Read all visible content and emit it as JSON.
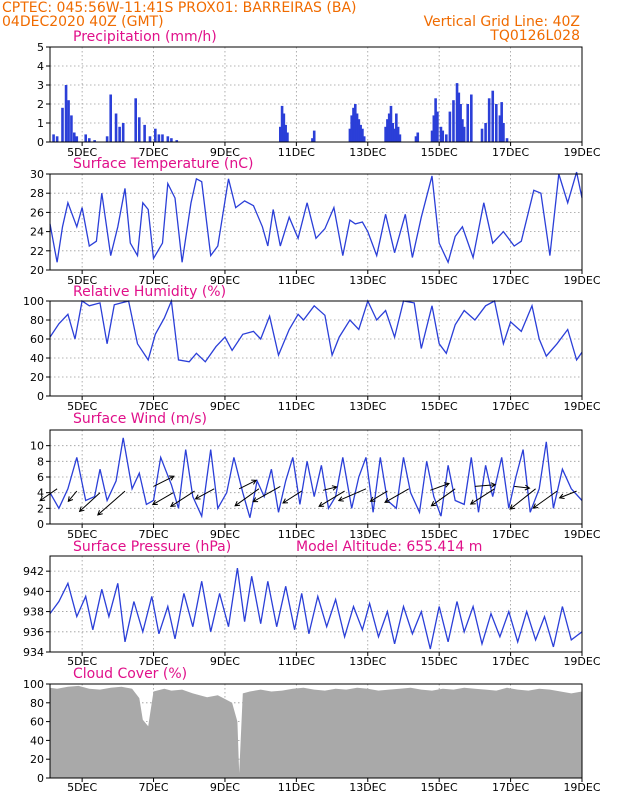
{
  "header": {
    "left_line1": "CPTEC:   045:56W-11:41S   PROX01: BARREIRAS (BA)",
    "left_line2": "04DEC2020 40Z (GMT)",
    "right_line2": "Vertical Grid Line: 40Z",
    "right_line3": "TQ0126L028"
  },
  "colors": {
    "header": "#f06b00",
    "title": "#e0108a",
    "series": "#2b3fd8",
    "cloud": "#a9a9a9",
    "grid": "#9a9a9a"
  },
  "x_axis": {
    "tick_labels": [
      "5DEC",
      "7DEC",
      "9DEC",
      "11DEC",
      "13DEC",
      "15DEC",
      "17DEC",
      "19DEC"
    ],
    "tick_days": [
      5,
      7,
      9,
      11,
      13,
      15,
      17,
      19
    ],
    "start_day": 4.1,
    "end_day": 19
  },
  "chart_data": [
    {
      "type": "bar",
      "title": "Precipitation (mm/h)",
      "ylim": [
        0,
        5
      ],
      "yticks": [
        0,
        1,
        2,
        3,
        4,
        5
      ],
      "grid": true,
      "x": [
        4.2,
        4.3,
        4.45,
        4.55,
        4.62,
        4.7,
        4.78,
        4.85,
        5.1,
        5.2,
        5.35,
        5.7,
        5.8,
        5.95,
        6.05,
        6.15,
        6.5,
        6.6,
        6.75,
        6.9,
        7.05,
        7.15,
        7.25,
        7.4,
        7.5,
        7.65,
        10.55,
        10.6,
        10.65,
        10.7,
        10.75,
        11.45,
        11.5,
        12.5,
        12.55,
        12.6,
        12.65,
        12.7,
        12.75,
        12.8,
        12.85,
        12.9,
        13.5,
        13.55,
        13.6,
        13.65,
        13.7,
        13.75,
        13.8,
        13.85,
        13.9,
        14.35,
        14.4,
        14.8,
        14.85,
        14.9,
        14.95,
        15.05,
        15.1,
        15.2,
        15.3,
        15.4,
        15.5,
        15.55,
        15.6,
        15.65,
        15.7,
        15.8,
        15.9,
        16.2,
        16.3,
        16.4,
        16.5,
        16.6,
        16.7,
        16.75,
        16.8,
        16.9
      ],
      "values": [
        0.4,
        0.3,
        1.8,
        3.0,
        2.2,
        1.4,
        0.5,
        0.3,
        0.4,
        0.2,
        0.1,
        0.3,
        2.5,
        1.5,
        0.8,
        1.0,
        2.3,
        1.3,
        0.9,
        0.3,
        0.7,
        0.4,
        0.4,
        0.3,
        0.2,
        0.1,
        0.8,
        1.9,
        1.5,
        0.9,
        0.5,
        0.2,
        0.6,
        0.7,
        1.4,
        1.8,
        2.0,
        1.5,
        1.2,
        0.9,
        0.7,
        0.3,
        0.8,
        1.2,
        1.5,
        1.9,
        1.0,
        0.7,
        1.5,
        0.8,
        0.4,
        0.3,
        0.5,
        0.6,
        1.4,
        2.3,
        1.6,
        0.8,
        0.6,
        0.4,
        1.6,
        2.2,
        3.1,
        2.6,
        2.0,
        1.2,
        0.8,
        2.0,
        2.5,
        0.7,
        1.0,
        2.3,
        2.7,
        2.0,
        1.4,
        2.1,
        1.0,
        0.2
      ]
    },
    {
      "type": "line",
      "title": "Surface Temperature (nC)",
      "ylim": [
        20,
        30
      ],
      "yticks": [
        20,
        22,
        24,
        26,
        28,
        30
      ],
      "grid": true,
      "x": [
        4.1,
        4.3,
        4.45,
        4.6,
        4.85,
        5.0,
        5.2,
        5.4,
        5.55,
        5.8,
        6.0,
        6.2,
        6.35,
        6.55,
        6.7,
        6.85,
        7.0,
        7.25,
        7.4,
        7.6,
        7.8,
        8.05,
        8.2,
        8.35,
        8.6,
        8.8,
        9.1,
        9.3,
        9.55,
        9.8,
        10.05,
        10.2,
        10.35,
        10.55,
        10.8,
        11.05,
        11.3,
        11.55,
        11.8,
        12.05,
        12.3,
        12.5,
        12.65,
        12.85,
        13.0,
        13.25,
        13.5,
        13.75,
        14.05,
        14.25,
        14.5,
        14.8,
        15.0,
        15.25,
        15.45,
        15.65,
        15.95,
        16.25,
        16.5,
        16.8,
        17.1,
        17.3,
        17.65,
        17.85,
        18.1,
        18.35,
        18.6,
        18.85,
        19.0
      ],
      "values": [
        24.8,
        20.8,
        24.5,
        27.0,
        24.5,
        26.5,
        22.5,
        23.0,
        28.0,
        21.5,
        24.5,
        28.5,
        22.8,
        21.5,
        27.0,
        26.3,
        21.2,
        22.8,
        29.0,
        27.5,
        20.8,
        27.0,
        29.5,
        29.2,
        21.5,
        22.5,
        29.5,
        26.5,
        27.2,
        26.7,
        24.5,
        22.5,
        26.3,
        22.5,
        25.5,
        23.3,
        27.0,
        23.3,
        24.3,
        26.5,
        21.5,
        25.2,
        24.8,
        25.0,
        24.0,
        21.5,
        25.8,
        21.8,
        25.8,
        21.3,
        25.5,
        29.8,
        22.8,
        20.8,
        23.5,
        24.5,
        21.3,
        27.0,
        22.8,
        24.0,
        22.5,
        23.0,
        28.3,
        28.0,
        21.5,
        30.0,
        27.0,
        30.2,
        27.5
      ]
    },
    {
      "type": "line",
      "title": "Relative Humidity (%)",
      "ylim": [
        0,
        100
      ],
      "yticks": [
        0,
        20,
        40,
        60,
        80,
        100
      ],
      "grid": true,
      "x": [
        4.1,
        4.35,
        4.6,
        4.8,
        5.0,
        5.2,
        5.5,
        5.7,
        5.9,
        6.1,
        6.3,
        6.55,
        6.85,
        7.05,
        7.3,
        7.5,
        7.7,
        8.0,
        8.2,
        8.45,
        8.75,
        9.0,
        9.2,
        9.5,
        9.8,
        10.0,
        10.25,
        10.5,
        10.8,
        11.05,
        11.2,
        11.5,
        11.8,
        12.0,
        12.2,
        12.5,
        12.75,
        13.0,
        13.25,
        13.5,
        13.75,
        14.0,
        14.3,
        14.5,
        14.8,
        15.0,
        15.2,
        15.45,
        15.7,
        16.0,
        16.3,
        16.55,
        16.8,
        17.0,
        17.3,
        17.6,
        17.8,
        18.0,
        18.3,
        18.6,
        18.85,
        19.0
      ],
      "values": [
        62,
        76,
        86,
        60,
        100,
        95,
        98,
        55,
        96,
        98,
        100,
        55,
        38,
        65,
        82,
        100,
        38,
        36,
        45,
        36,
        52,
        62,
        48,
        65,
        68,
        60,
        84,
        43,
        70,
        86,
        80,
        95,
        85,
        43,
        62,
        80,
        70,
        100,
        80,
        90,
        62,
        100,
        98,
        50,
        95,
        55,
        45,
        75,
        90,
        80,
        95,
        100,
        55,
        78,
        68,
        95,
        60,
        42,
        55,
        70,
        38,
        46
      ]
    },
    {
      "type": "line",
      "title": "Surface Wind (m/s)",
      "ylim": [
        0,
        12
      ],
      "yticks": [
        0,
        2,
        4,
        6,
        8,
        10
      ],
      "grid": true,
      "x": [
        4.1,
        4.35,
        4.6,
        4.85,
        5.1,
        5.35,
        5.5,
        5.7,
        5.95,
        6.15,
        6.4,
        6.6,
        6.8,
        7.0,
        7.2,
        7.5,
        7.7,
        7.9,
        8.1,
        8.35,
        8.6,
        8.8,
        9.05,
        9.25,
        9.5,
        9.7,
        9.9,
        10.1,
        10.3,
        10.5,
        10.7,
        10.9,
        11.1,
        11.3,
        11.5,
        11.7,
        11.9,
        12.1,
        12.3,
        12.55,
        12.75,
        12.95,
        13.15,
        13.35,
        13.55,
        13.8,
        14.0,
        14.2,
        14.45,
        14.65,
        14.85,
        15.05,
        15.25,
        15.45,
        15.7,
        15.9,
        16.1,
        16.3,
        16.5,
        16.75,
        16.95,
        17.15,
        17.35,
        17.55,
        17.8,
        18.0,
        18.2,
        18.45,
        18.7,
        19.0
      ],
      "values": [
        4.0,
        2.0,
        4.5,
        8.5,
        3.0,
        3.5,
        7.0,
        3.0,
        5.5,
        11.0,
        4.5,
        6.5,
        2.5,
        3.0,
        8.5,
        5.0,
        2.0,
        9.5,
        3.5,
        1.0,
        9.5,
        2.0,
        4.0,
        8.5,
        4.0,
        0.8,
        5.5,
        3.5,
        7.0,
        1.5,
        5.5,
        8.5,
        2.5,
        8.0,
        3.5,
        7.5,
        2.0,
        3.5,
        8.5,
        2.0,
        6.0,
        8.5,
        1.5,
        8.5,
        3.0,
        2.0,
        8.5,
        4.0,
        1.5,
        8.0,
        3.5,
        1.0,
        7.5,
        3.0,
        2.5,
        8.5,
        1.5,
        7.5,
        3.5,
        8.5,
        2.0,
        6.0,
        9.5,
        1.5,
        4.5,
        10.5,
        2.0,
        7.0,
        4.5,
        3.0
      ],
      "wind_vectors": {
        "x": [
          4.3,
          4.85,
          5.5,
          6.2,
          7.0,
          7.55,
          8.15,
          8.7,
          9.4,
          9.95,
          10.55,
          11.15,
          11.75,
          12.35,
          12.95,
          13.55,
          14.15,
          14.75,
          15.45,
          16.0,
          16.55,
          17.1,
          17.7,
          18.3,
          18.85
        ],
        "y": [
          4.5,
          4.2,
          4.0,
          4.2,
          4.8,
          4.0,
          4.2,
          4.5,
          4.5,
          4.5,
          4.8,
          4.2,
          4.3,
          4.2,
          4.5,
          4.2,
          4.5,
          4.3,
          4.5,
          4.8,
          4.5,
          4.8,
          4.5,
          4.2,
          4.2
        ],
        "u": [
          -0.5,
          -0.25,
          -0.6,
          -0.8,
          0.6,
          -0.6,
          -0.7,
          -0.55,
          0.5,
          -0.7,
          -0.8,
          -0.55,
          0.4,
          -0.75,
          -0.8,
          -0.5,
          -0.7,
          0.55,
          -0.7,
          0.6,
          -0.7,
          0.45,
          -0.75,
          -0.7,
          -0.5
        ],
        "v": [
          -0.35,
          -0.3,
          -0.55,
          -0.7,
          0.3,
          -0.35,
          -0.45,
          -0.3,
          0.25,
          -0.5,
          -0.45,
          -0.35,
          0.1,
          -0.45,
          -0.35,
          -0.3,
          -0.4,
          0.2,
          -0.5,
          0.05,
          -0.45,
          -0.05,
          -0.6,
          -0.5,
          -0.2
        ]
      }
    },
    {
      "type": "line",
      "title": "Surface Pressure (hPa)",
      "annotation": "Model Altitude: 655.414 m",
      "ylim": [
        934,
        943.5
      ],
      "yticks": [
        934,
        936,
        938,
        940,
        942
      ],
      "grid": true,
      "x": [
        4.1,
        4.35,
        4.6,
        4.85,
        5.1,
        5.3,
        5.55,
        5.75,
        6.0,
        6.2,
        6.45,
        6.7,
        6.95,
        7.15,
        7.4,
        7.6,
        7.85,
        8.1,
        8.35,
        8.6,
        8.85,
        9.1,
        9.35,
        9.55,
        9.75,
        10.0,
        10.2,
        10.45,
        10.7,
        10.95,
        11.15,
        11.35,
        11.6,
        11.85,
        12.1,
        12.35,
        12.6,
        12.85,
        13.05,
        13.3,
        13.55,
        13.75,
        14.0,
        14.25,
        14.5,
        14.75,
        15.0,
        15.25,
        15.5,
        15.7,
        15.95,
        16.2,
        16.45,
        16.7,
        16.95,
        17.2,
        17.45,
        17.7,
        17.95,
        18.2,
        18.45,
        18.7,
        19.0
      ],
      "values": [
        937.8,
        939.0,
        940.8,
        937.5,
        939.5,
        936.2,
        940.2,
        937.5,
        940.8,
        935.0,
        939.0,
        936.0,
        939.5,
        935.8,
        938.5,
        935.3,
        939.8,
        936.5,
        941.0,
        936.0,
        939.8,
        936.5,
        942.3,
        937.0,
        941.5,
        936.8,
        941.0,
        936.5,
        940.5,
        936.2,
        939.8,
        935.8,
        939.5,
        936.5,
        939.2,
        935.5,
        938.5,
        936.2,
        938.8,
        935.5,
        938.0,
        934.8,
        938.5,
        935.8,
        938.0,
        934.3,
        938.5,
        935.0,
        939.0,
        936.0,
        938.5,
        934.8,
        937.8,
        935.5,
        938.0,
        935.0,
        938.0,
        935.2,
        937.5,
        934.5,
        938.5,
        935.2,
        936.0
      ]
    },
    {
      "type": "area",
      "title": "Cloud Cover (%)",
      "ylim": [
        0,
        100
      ],
      "yticks": [
        0,
        20,
        40,
        60,
        80,
        100
      ],
      "grid": true,
      "x": [
        4.1,
        4.3,
        4.6,
        4.9,
        5.2,
        5.5,
        5.8,
        6.1,
        6.4,
        6.6,
        6.7,
        6.85,
        7.0,
        7.3,
        7.5,
        7.8,
        8.1,
        8.5,
        8.8,
        9.0,
        9.2,
        9.35,
        9.4,
        9.5,
        9.7,
        10.0,
        10.3,
        10.6,
        10.9,
        11.2,
        11.5,
        11.8,
        12.1,
        12.4,
        12.7,
        13.0,
        13.3,
        13.6,
        13.9,
        14.2,
        14.5,
        14.8,
        15.1,
        15.4,
        15.7,
        16.0,
        16.3,
        16.6,
        16.9,
        17.2,
        17.5,
        17.8,
        18.1,
        18.4,
        18.7,
        19.0
      ],
      "values": [
        96,
        95,
        97,
        98,
        95,
        94,
        96,
        97,
        95,
        85,
        62,
        55,
        92,
        95,
        93,
        94,
        90,
        86,
        88,
        84,
        80,
        60,
        5,
        90,
        92,
        94,
        92,
        93,
        95,
        96,
        94,
        93,
        95,
        94,
        96,
        95,
        93,
        94,
        95,
        96,
        94,
        93,
        95,
        94,
        96,
        95,
        94,
        93,
        96,
        94,
        93,
        95,
        94,
        92,
        90,
        92
      ]
    }
  ]
}
